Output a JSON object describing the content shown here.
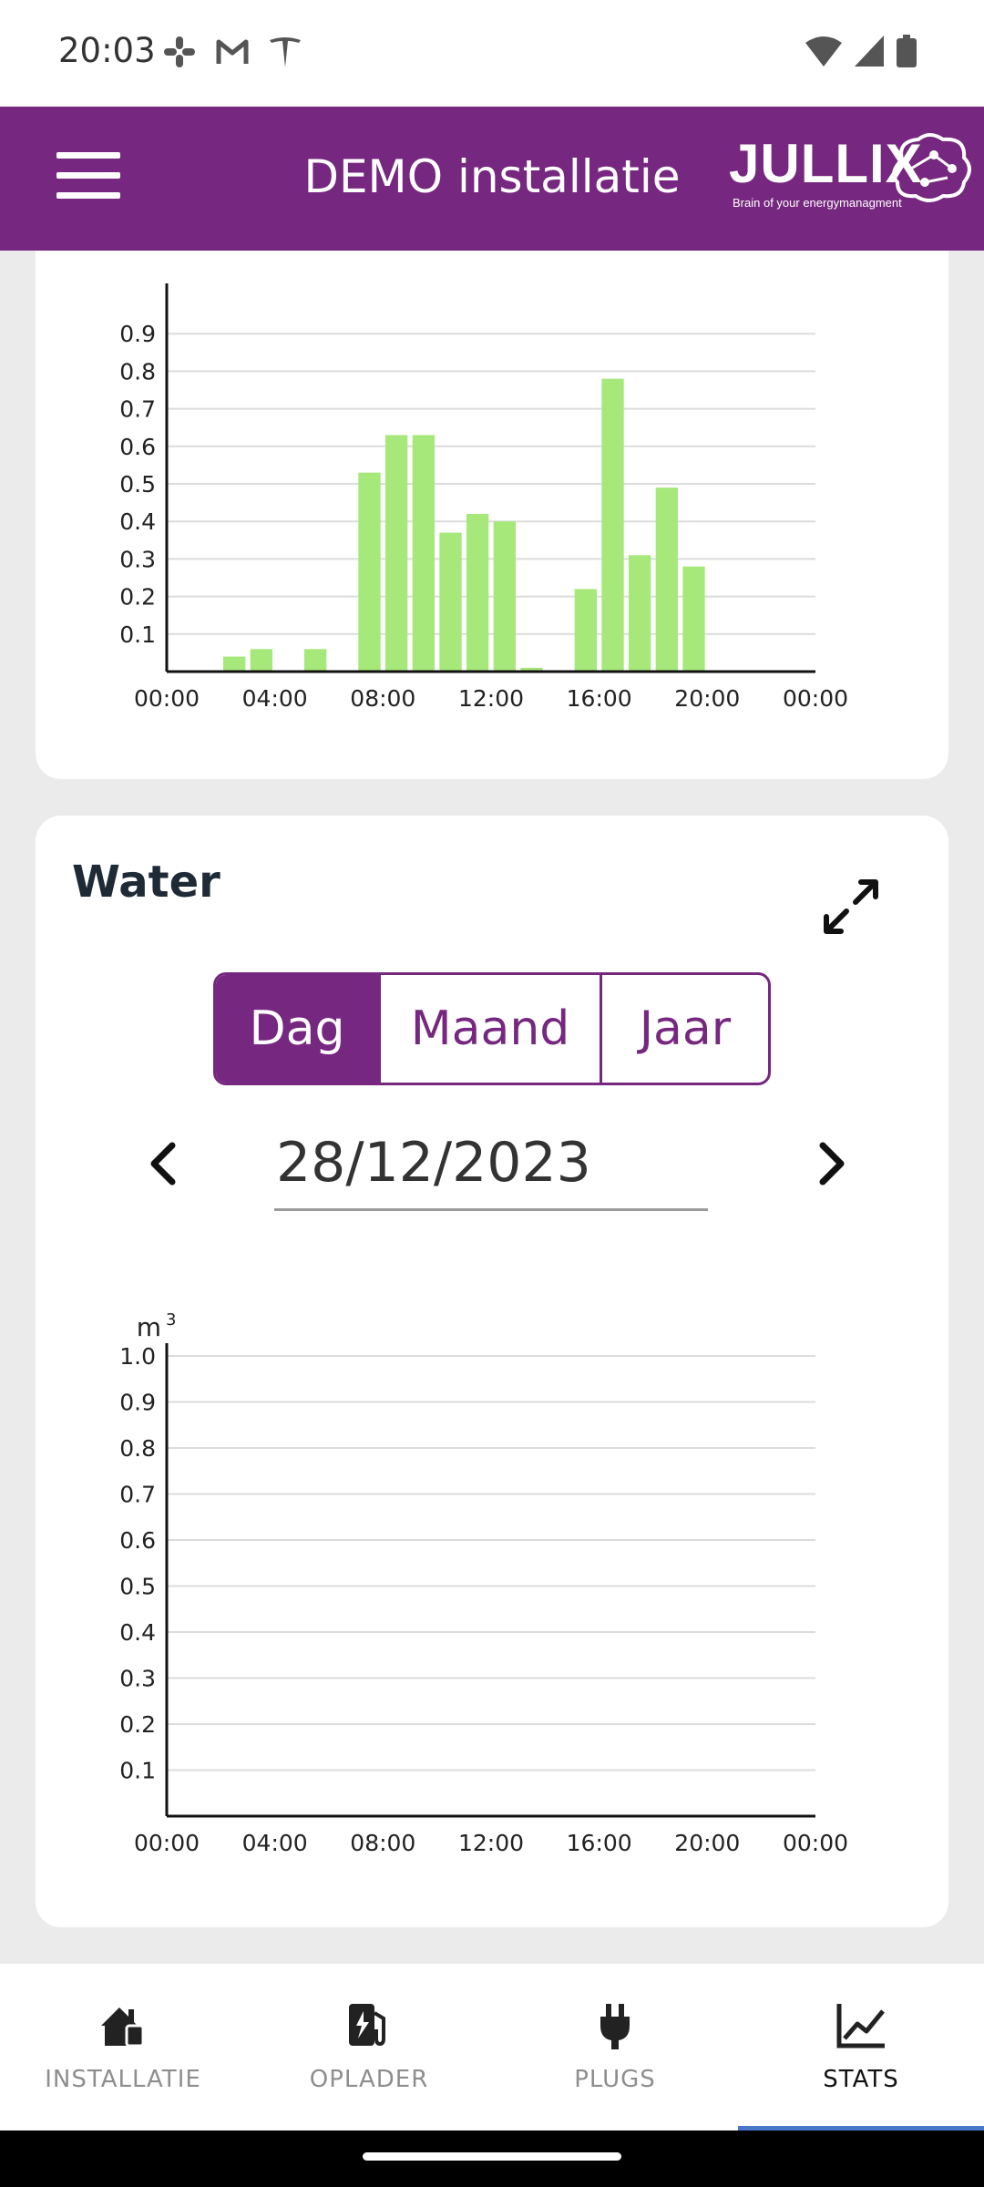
{
  "status": {
    "time": "20:03",
    "left_icons": [
      "slack-icon",
      "gmail-icon",
      "tesla-icon"
    ],
    "right_icons": [
      "wifi-icon",
      "signal-icon",
      "battery-icon"
    ]
  },
  "header": {
    "title": "DEMO installatie",
    "logo_text": "JULLIX",
    "logo_tagline": "Brain of your energymanagment",
    "bg_color": "#76277f"
  },
  "top_chart": {
    "chart_data": {
      "type": "bar",
      "x": [
        "00:00",
        "01:00",
        "02:00",
        "03:00",
        "04:00",
        "05:00",
        "06:00",
        "07:00",
        "08:00",
        "09:00",
        "10:00",
        "11:00",
        "12:00",
        "13:00",
        "14:00",
        "15:00",
        "16:00",
        "17:00",
        "18:00",
        "19:00",
        "20:00",
        "21:00",
        "22:00",
        "23:00"
      ],
      "values": [
        0,
        0,
        0.04,
        0.06,
        0,
        0.06,
        0,
        0.53,
        0.63,
        0.63,
        0.37,
        0.42,
        0.4,
        0.01,
        0,
        0.22,
        0.78,
        0.31,
        0.49,
        0.28,
        0,
        0,
        0,
        0
      ],
      "y_ticks": [
        "0.1",
        "0.2",
        "0.3",
        "0.4",
        "0.5",
        "0.6",
        "0.7",
        "0.8",
        "0.9"
      ],
      "x_ticks": [
        "00:00",
        "04:00",
        "08:00",
        "12:00",
        "16:00",
        "20:00",
        "00:00"
      ],
      "ylim": [
        0,
        1.0
      ],
      "bar_color": "#a6e87a",
      "grid": true
    }
  },
  "water": {
    "title": "Water",
    "segments": [
      "Dag",
      "Maand",
      "Jaar"
    ],
    "active_segment": "Dag",
    "date": "28/12/2023",
    "chart_data": {
      "type": "bar",
      "unit": "m",
      "unit_sup": "3",
      "values": [],
      "y_ticks": [
        "0.1",
        "0.2",
        "0.3",
        "0.4",
        "0.5",
        "0.6",
        "0.7",
        "0.8",
        "0.9",
        "1.0"
      ],
      "x_ticks": [
        "00:00",
        "04:00",
        "08:00",
        "12:00",
        "16:00",
        "20:00",
        "00:00"
      ],
      "ylim": [
        0,
        1.0
      ],
      "grid": true
    }
  },
  "bottom_nav": {
    "items": [
      {
        "label": "INSTALLATIE",
        "icon": "house-icon"
      },
      {
        "label": "OPLADER",
        "icon": "charger-icon"
      },
      {
        "label": "PLUGS",
        "icon": "plug-icon"
      },
      {
        "label": "STATS",
        "icon": "stats-icon"
      }
    ],
    "active": "STATS",
    "active_color": "#4a78c9"
  }
}
